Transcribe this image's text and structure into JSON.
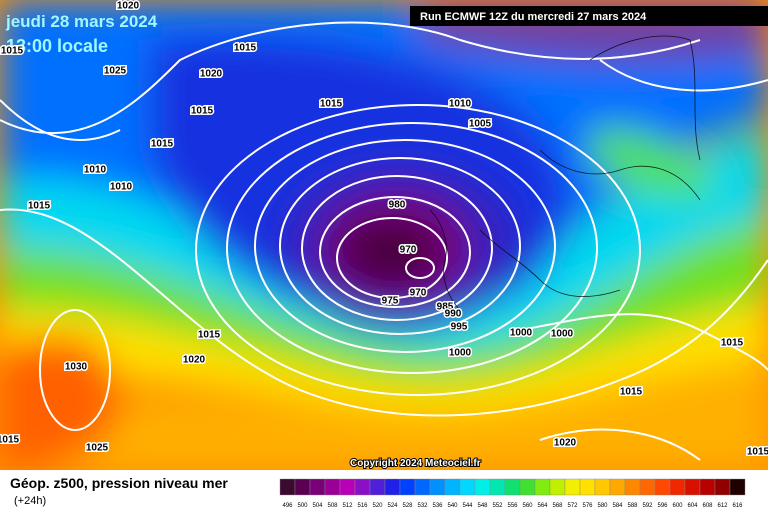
{
  "header": {
    "date": "jeudi 28 mars 2024",
    "time": "13:00 locale",
    "run": "Run ECMWF 12Z du mercredi 27 mars 2024"
  },
  "copyright": "Copyright 2024 Meteociel.fr",
  "footer": {
    "title": "Géop. z500, pression niveau mer",
    "lead": "(+24h)"
  },
  "isobar_labels": [
    1020,
    1015,
    1025,
    1015,
    1020,
    1015,
    1015,
    1010,
    1005,
    1010,
    1010,
    1015,
    980,
    970,
    975,
    970,
    985,
    990,
    995,
    1000,
    1000,
    1000,
    1015,
    1030,
    1020,
    1015,
    1025,
    1015,
    1020,
    1015,
    1015,
    1015
  ],
  "legend": {
    "labels": [
      496,
      500,
      504,
      508,
      512,
      516,
      520,
      524,
      528,
      532,
      536,
      540,
      544,
      548,
      552,
      556,
      560,
      564,
      568,
      572,
      576,
      580,
      584,
      588,
      592,
      596,
      600,
      604,
      608,
      612,
      616
    ],
    "colors": [
      "#3a0a30",
      "#5a0050",
      "#7a0078",
      "#9a0098",
      "#b800b8",
      "#8a10c8",
      "#5020d8",
      "#2020e8",
      "#0040ff",
      "#0068ff",
      "#0090ff",
      "#00b4ff",
      "#00d8ff",
      "#00f0e8",
      "#00e8b0",
      "#10e070",
      "#40e030",
      "#80ec10",
      "#c0f000",
      "#f0f000",
      "#ffe000",
      "#ffc800",
      "#ffa800",
      "#ff8800",
      "#ff6800",
      "#ff4800",
      "#f02800",
      "#d81000",
      "#b80000",
      "#900000",
      "#200000"
    ]
  }
}
